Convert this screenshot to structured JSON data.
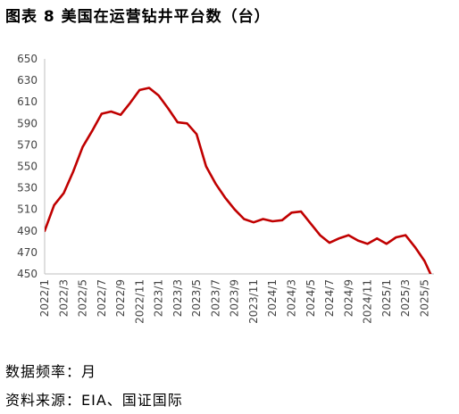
{
  "title": "图表 8 美国在运营钻井平台数（台）",
  "frequency_note": "数据频率：月",
  "source_note": "资料来源：EIA、国证国际",
  "colors": {
    "line": "#c00000",
    "axis": "#bfbfbf",
    "tick_text": "#444444"
  },
  "chart_data": {
    "type": "line",
    "title": "图表 8 美国在运营钻井平台数（台）",
    "xlabel": "",
    "ylabel": "",
    "ylim": [
      450,
      650
    ],
    "yticks": [
      450,
      470,
      490,
      510,
      530,
      550,
      570,
      590,
      610,
      630,
      650
    ],
    "grid": false,
    "legend": "none",
    "x_tick_labels": [
      "2022/1",
      "2022/3",
      "2022/5",
      "2022/7",
      "2022/9",
      "2022/11",
      "2023/1",
      "2023/3",
      "2023/5",
      "2023/7",
      "2023/9",
      "2023/11",
      "2024/1",
      "2024/3",
      "2024/5",
      "2024/7",
      "2024/9",
      "2024/11",
      "2025/1",
      "2025/3",
      "2025/5"
    ],
    "x": [
      "2022/1",
      "2022/2",
      "2022/3",
      "2022/4",
      "2022/5",
      "2022/6",
      "2022/7",
      "2022/8",
      "2022/9",
      "2022/10",
      "2022/11",
      "2022/12",
      "2023/1",
      "2023/2",
      "2023/3",
      "2023/4",
      "2023/5",
      "2023/6",
      "2023/7",
      "2023/8",
      "2023/9",
      "2023/10",
      "2023/11",
      "2023/12",
      "2024/1",
      "2024/2",
      "2024/3",
      "2024/4",
      "2024/5",
      "2024/6",
      "2024/7",
      "2024/8",
      "2024/9",
      "2024/10",
      "2024/11",
      "2024/12",
      "2025/1",
      "2025/2",
      "2025/3",
      "2025/4",
      "2025/5",
      "2025/6"
    ],
    "series": [
      {
        "values": [
          490,
          514,
          525,
          545,
          568,
          583,
          599,
          601,
          598,
          609,
          621,
          623,
          616,
          604,
          591,
          590,
          580,
          550,
          534,
          521,
          510,
          501,
          498,
          501,
          499,
          500,
          507,
          508,
          497,
          486,
          479,
          483,
          486,
          481,
          478,
          483,
          478,
          484,
          486,
          475,
          462,
          443
        ]
      }
    ]
  }
}
